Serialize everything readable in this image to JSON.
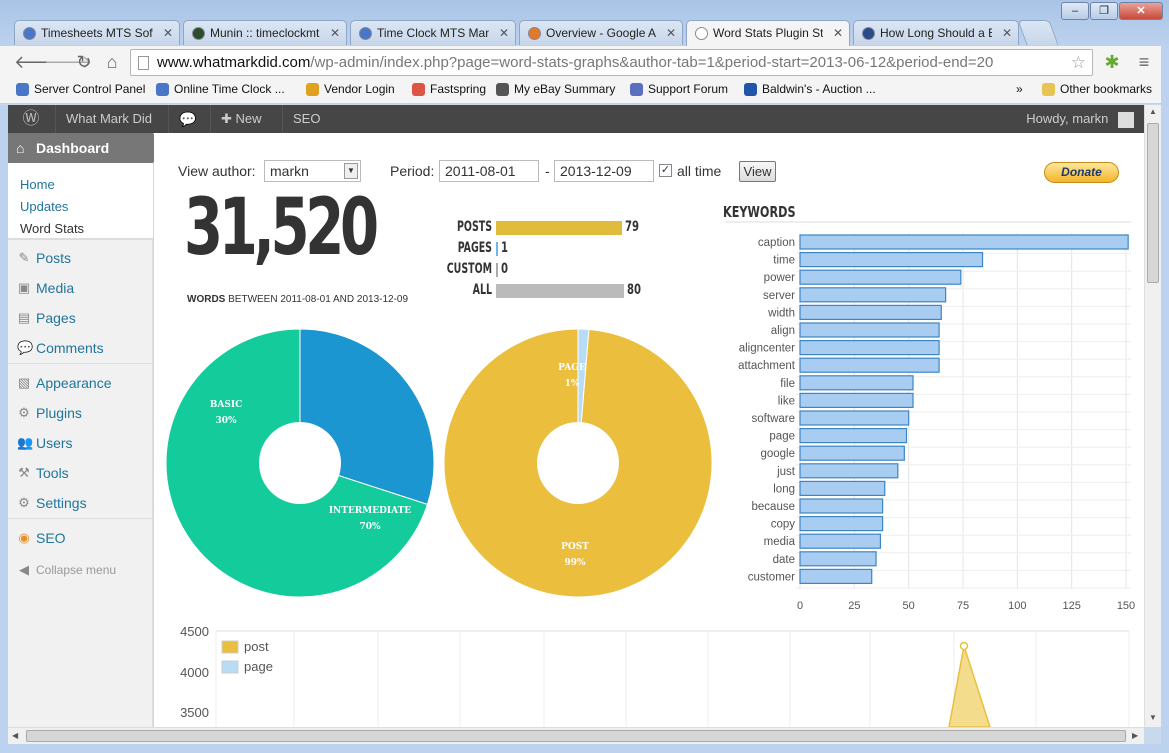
{
  "browser": {
    "tabs": [
      {
        "label": "Timesheets MTS Softw",
        "color": "#4a76c7"
      },
      {
        "label": "Munin :: timeclockmt",
        "color": "#2d4d2d"
      },
      {
        "label": "Time Clock MTS Manu",
        "color": "#4a76c7"
      },
      {
        "label": "Overview - Google An",
        "color": "#e07a2b"
      },
      {
        "label": "Word Stats Plugin Sta",
        "color": "#ffffff"
      },
      {
        "label": "How Long Should a Bl",
        "color": "#2b4a8a"
      }
    ],
    "url_domain": "www.whatmarkdid.com",
    "url_path": "/wp-admin/index.php?page=word-stats-graphs&author-tab=1&period-start=2013-06-12&period-end=20",
    "bookmarks": [
      "Server Control Panel",
      "Online Time Clock ...",
      "Vendor Login",
      "Fastspring",
      "My eBay Summary",
      "Support Forum",
      "Baldwin's - Auction ..."
    ],
    "more_bookmarks": "»",
    "other_bookmarks": "Other bookmarks"
  },
  "adminbar": {
    "site": "What Mark Did",
    "new": "New",
    "seo": "SEO",
    "howdy": "Howdy, markn"
  },
  "sidebar": {
    "dashboard": "Dashboard",
    "sub": [
      "Home",
      "Updates",
      "Word Stats"
    ],
    "menu": [
      "Posts",
      "Media",
      "Pages",
      "Comments",
      "Appearance",
      "Plugins",
      "Users",
      "Tools",
      "Settings",
      "SEO"
    ],
    "collapse": "Collapse menu"
  },
  "filters": {
    "view_author_label": "View author:",
    "author": "markn",
    "period_label": "Period:",
    "start": "2011-08-01",
    "dash": "-",
    "end": "2013-12-09",
    "all_time_label": "all time",
    "all_time_checked": true,
    "view_button": "View",
    "donate": "Donate"
  },
  "summary": {
    "total_words": "31,520",
    "words_label": "WORDS",
    "between_text": "BETWEEN 2011-08-01 AND 2013-12-09",
    "rows": [
      {
        "label": "POSTS",
        "value": 79,
        "color": "#e0bb3c"
      },
      {
        "label": "PAGES",
        "value": 1,
        "color": "#6fb6e6"
      },
      {
        "label": "CUSTOM",
        "value": 0,
        "color": "#aaaaaa"
      },
      {
        "label": "ALL",
        "value": 80,
        "color": "#bbbbbb"
      }
    ]
  },
  "chart_data": [
    {
      "type": "pie",
      "slices": [
        {
          "label": "BASIC",
          "pct_label": "30%",
          "value": 30,
          "color": "#1b96d0"
        },
        {
          "label": "INTERMEDIATE",
          "pct_label": "70%",
          "value": 70,
          "color": "#14cc9b"
        }
      ]
    },
    {
      "type": "pie",
      "slices": [
        {
          "label": "PAGE",
          "pct_label": "1%",
          "value": 1.3,
          "color": "#b8dcf3"
        },
        {
          "label": "POST",
          "pct_label": "99%",
          "value": 98.7,
          "color": "#ebbe3e"
        }
      ]
    },
    {
      "type": "bar",
      "orientation": "horizontal",
      "title": "KEYWORDS",
      "categories": [
        "caption",
        "time",
        "power",
        "server",
        "width",
        "align",
        "aligncenter",
        "attachment",
        "file",
        "like",
        "software",
        "page",
        "google",
        "just",
        "long",
        "because",
        "copy",
        "media",
        "date",
        "customer"
      ],
      "values": [
        153,
        84,
        74,
        67,
        65,
        64,
        64,
        64,
        52,
        52,
        50,
        49,
        48,
        45,
        39,
        38,
        38,
        37,
        35,
        33
      ],
      "xlim": [
        0,
        150
      ],
      "xticks": [
        0,
        25,
        50,
        75,
        100,
        125,
        150
      ],
      "color": "#a9cdf0",
      "border": "#3b86c6"
    },
    {
      "type": "line",
      "series": [
        {
          "name": "post",
          "color": "#e8bf3f"
        },
        {
          "name": "page",
          "color": "#b8dcf3"
        }
      ],
      "yticks": [
        4500,
        4000,
        3500
      ]
    }
  ]
}
